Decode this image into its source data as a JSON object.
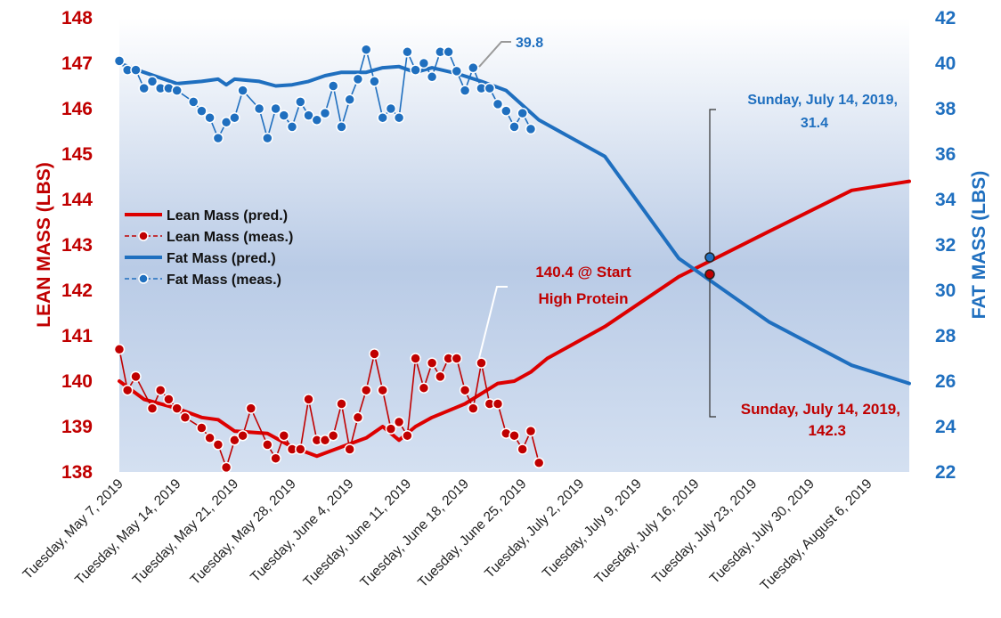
{
  "chart_data": {
    "type": "line",
    "x_labels": [
      "Tuesday, May 7, 2019",
      "Tuesday, May 14, 2019",
      "Tuesday, May 21, 2019",
      "Tuesday, May 28, 2019",
      "Tuesday, June 4, 2019",
      "Tuesday, June 11, 2019",
      "Tuesday, June 18, 2019",
      "Tuesday, June 25, 2019",
      "Tuesday, July 2, 2019",
      "Tuesday, July 9, 2019",
      "Tuesday, July 16, 2019",
      "Tuesday, July 23, 2019",
      "Tuesday, July 30, 2019",
      "Tuesday, August 6, 2019"
    ],
    "x_start_date": "2019-05-07",
    "x_end_date": "2019-08-11",
    "ylabel_left": "LEAN MASS (LBS)",
    "ylabel_right": "FAT MASS (LBS)",
    "ylim_left": [
      138,
      148
    ],
    "ylim_right": [
      22,
      42
    ],
    "yticks_left": [
      "138",
      "139",
      "140",
      "141",
      "142",
      "143",
      "144",
      "145",
      "146",
      "147",
      "148"
    ],
    "yticks_right": [
      "22",
      "24",
      "26",
      "28",
      "30",
      "32",
      "34",
      "36",
      "38",
      "40",
      "42"
    ],
    "legend": {
      "placement": "center-left",
      "entries": [
        "Lean Mass (pred.)",
        "Lean Mass (meas.)",
        "Fat Mass (pred.)",
        "Fat Mass (meas.)"
      ]
    },
    "colors": {
      "lean": "#dd0000",
      "lean_marker": "#c00000",
      "fat": "#1f6fbf",
      "fat_marker": "#1f6fbf"
    },
    "series": [
      {
        "name": "Lean Mass (pred.)",
        "axis": "left",
        "kind": "line",
        "points": [
          [
            "2019-05-07",
            140.0
          ],
          [
            "2019-05-10",
            139.6
          ],
          [
            "2019-05-14",
            139.4
          ],
          [
            "2019-05-17",
            139.2
          ],
          [
            "2019-05-19",
            139.15
          ],
          [
            "2019-05-21",
            138.9
          ],
          [
            "2019-05-25",
            138.85
          ],
          [
            "2019-05-28",
            138.55
          ],
          [
            "2019-05-31",
            138.35
          ],
          [
            "2019-06-03",
            138.55
          ],
          [
            "2019-06-06",
            138.75
          ],
          [
            "2019-06-08",
            139.0
          ],
          [
            "2019-06-10",
            138.7
          ],
          [
            "2019-06-12",
            139.0
          ],
          [
            "2019-06-14",
            139.2
          ],
          [
            "2019-06-16",
            139.35
          ],
          [
            "2019-06-18",
            139.5
          ],
          [
            "2019-06-22",
            139.95
          ],
          [
            "2019-06-24",
            140.0
          ],
          [
            "2019-06-26",
            140.2
          ],
          [
            "2019-06-28",
            140.5
          ],
          [
            "2019-07-05",
            141.2
          ],
          [
            "2019-07-14",
            142.3
          ],
          [
            "2019-07-25",
            143.3
          ],
          [
            "2019-08-04",
            144.2
          ],
          [
            "2019-08-11",
            144.4
          ]
        ]
      },
      {
        "name": "Lean Mass (meas.)",
        "axis": "left",
        "kind": "markers",
        "points": [
          [
            "2019-05-07",
            140.7
          ],
          [
            "2019-05-08",
            139.8
          ],
          [
            "2019-05-09",
            140.1
          ],
          [
            "2019-05-11",
            139.4
          ],
          [
            "2019-05-12",
            139.8
          ],
          [
            "2019-05-13",
            139.6
          ],
          [
            "2019-05-14",
            139.4
          ],
          [
            "2019-05-15",
            139.2
          ],
          [
            "2019-05-17",
            138.97
          ],
          [
            "2019-05-18",
            138.75
          ],
          [
            "2019-05-19",
            138.6
          ],
          [
            "2019-05-20",
            138.1
          ],
          [
            "2019-05-21",
            138.7
          ],
          [
            "2019-05-22",
            138.8
          ],
          [
            "2019-05-23",
            139.4
          ],
          [
            "2019-05-25",
            138.6
          ],
          [
            "2019-05-26",
            138.3
          ],
          [
            "2019-05-27",
            138.8
          ],
          [
            "2019-05-28",
            138.5
          ],
          [
            "2019-05-29",
            138.5
          ],
          [
            "2019-05-30",
            139.6
          ],
          [
            "2019-05-31",
            138.7
          ],
          [
            "2019-06-01",
            138.7
          ],
          [
            "2019-06-02",
            138.8
          ],
          [
            "2019-06-03",
            139.5
          ],
          [
            "2019-06-04",
            138.5
          ],
          [
            "2019-06-05",
            139.2
          ],
          [
            "2019-06-06",
            139.8
          ],
          [
            "2019-06-07",
            140.6
          ],
          [
            "2019-06-08",
            139.8
          ],
          [
            "2019-06-09",
            138.95
          ],
          [
            "2019-06-10",
            139.1
          ],
          [
            "2019-06-11",
            138.8
          ],
          [
            "2019-06-12",
            140.5
          ],
          [
            "2019-06-13",
            139.85
          ],
          [
            "2019-06-14",
            140.4
          ],
          [
            "2019-06-15",
            140.1
          ],
          [
            "2019-06-16",
            140.5
          ],
          [
            "2019-06-17",
            140.5
          ],
          [
            "2019-06-18",
            139.8
          ],
          [
            "2019-06-19",
            139.4
          ],
          [
            "2019-06-20",
            140.4
          ],
          [
            "2019-06-21",
            139.5
          ],
          [
            "2019-06-22",
            139.5
          ],
          [
            "2019-06-23",
            138.85
          ],
          [
            "2019-06-24",
            138.8
          ],
          [
            "2019-06-25",
            138.5
          ],
          [
            "2019-06-26",
            138.9
          ],
          [
            "2019-06-27",
            138.2
          ]
        ]
      },
      {
        "name": "Fat Mass (pred.)",
        "axis": "right",
        "kind": "line",
        "points": [
          [
            "2019-05-07",
            40.0
          ],
          [
            "2019-05-10",
            39.6
          ],
          [
            "2019-05-14",
            39.1
          ],
          [
            "2019-05-17",
            39.2
          ],
          [
            "2019-05-19",
            39.3
          ],
          [
            "2019-05-20",
            39.05
          ],
          [
            "2019-05-21",
            39.3
          ],
          [
            "2019-05-24",
            39.2
          ],
          [
            "2019-05-26",
            39.0
          ],
          [
            "2019-05-28",
            39.05
          ],
          [
            "2019-05-30",
            39.2
          ],
          [
            "2019-06-01",
            39.45
          ],
          [
            "2019-06-03",
            39.6
          ],
          [
            "2019-06-06",
            39.6
          ],
          [
            "2019-06-08",
            39.8
          ],
          [
            "2019-06-10",
            39.85
          ],
          [
            "2019-06-12",
            39.6
          ],
          [
            "2019-06-14",
            39.8
          ],
          [
            "2019-06-17",
            39.55
          ],
          [
            "2019-06-20",
            39.2
          ],
          [
            "2019-06-23",
            38.8
          ],
          [
            "2019-06-27",
            37.5
          ],
          [
            "2019-07-05",
            35.9
          ],
          [
            "2019-07-14",
            31.4
          ],
          [
            "2019-07-25",
            28.6
          ],
          [
            "2019-08-04",
            26.7
          ],
          [
            "2019-08-11",
            25.9
          ]
        ]
      },
      {
        "name": "Fat Mass (meas.)",
        "axis": "right",
        "kind": "markers",
        "points": [
          [
            "2019-05-07",
            40.1
          ],
          [
            "2019-05-08",
            39.7
          ],
          [
            "2019-05-09",
            39.7
          ],
          [
            "2019-05-10",
            38.9
          ],
          [
            "2019-05-11",
            39.2
          ],
          [
            "2019-05-12",
            38.9
          ],
          [
            "2019-05-13",
            38.9
          ],
          [
            "2019-05-14",
            38.8
          ],
          [
            "2019-05-16",
            38.3
          ],
          [
            "2019-05-17",
            37.9
          ],
          [
            "2019-05-18",
            37.6
          ],
          [
            "2019-05-19",
            36.7
          ],
          [
            "2019-05-20",
            37.4
          ],
          [
            "2019-05-21",
            37.6
          ],
          [
            "2019-05-22",
            38.8
          ],
          [
            "2019-05-24",
            38.0
          ],
          [
            "2019-05-25",
            36.7
          ],
          [
            "2019-05-26",
            38.0
          ],
          [
            "2019-05-27",
            37.7
          ],
          [
            "2019-05-28",
            37.2
          ],
          [
            "2019-05-29",
            38.3
          ],
          [
            "2019-05-30",
            37.7
          ],
          [
            "2019-05-31",
            37.5
          ],
          [
            "2019-06-01",
            37.8
          ],
          [
            "2019-06-02",
            39.0
          ],
          [
            "2019-06-03",
            37.2
          ],
          [
            "2019-06-04",
            38.4
          ],
          [
            "2019-06-05",
            39.3
          ],
          [
            "2019-06-06",
            40.6
          ],
          [
            "2019-06-07",
            39.2
          ],
          [
            "2019-06-08",
            37.6
          ],
          [
            "2019-06-09",
            38.0
          ],
          [
            "2019-06-10",
            37.6
          ],
          [
            "2019-06-11",
            40.5
          ],
          [
            "2019-06-12",
            39.7
          ],
          [
            "2019-06-13",
            40.0
          ],
          [
            "2019-06-14",
            39.4
          ],
          [
            "2019-06-15",
            40.5
          ],
          [
            "2019-06-16",
            40.5
          ],
          [
            "2019-06-17",
            39.65
          ],
          [
            "2019-06-18",
            38.8
          ],
          [
            "2019-06-19",
            39.8
          ],
          [
            "2019-06-20",
            38.9
          ],
          [
            "2019-06-21",
            38.9
          ],
          [
            "2019-06-22",
            38.2
          ],
          [
            "2019-06-23",
            37.9
          ],
          [
            "2019-06-24",
            37.2
          ],
          [
            "2019-06-25",
            37.8
          ],
          [
            "2019-06-26",
            37.1
          ]
        ]
      }
    ],
    "annotations": [
      {
        "id": "fat-max",
        "text": "39.8",
        "axis": "right",
        "date": "2019-06-20",
        "value": 39.8
      },
      {
        "id": "protein-start",
        "lines": [
          "140.4 @ Start",
          "High Protein"
        ],
        "axis": "left",
        "date": "2019-06-20",
        "value": 140.4
      },
      {
        "id": "fat-crossover",
        "lines": [
          "Sunday, July 14, 2019,",
          "31.4"
        ],
        "axis": "right",
        "date": "2019-07-14",
        "value": 31.4
      },
      {
        "id": "lean-crossover",
        "lines": [
          "Sunday, July 14, 2019,",
          "142.3"
        ],
        "axis": "left",
        "date": "2019-07-14",
        "value": 142.3
      }
    ],
    "grid": false
  }
}
